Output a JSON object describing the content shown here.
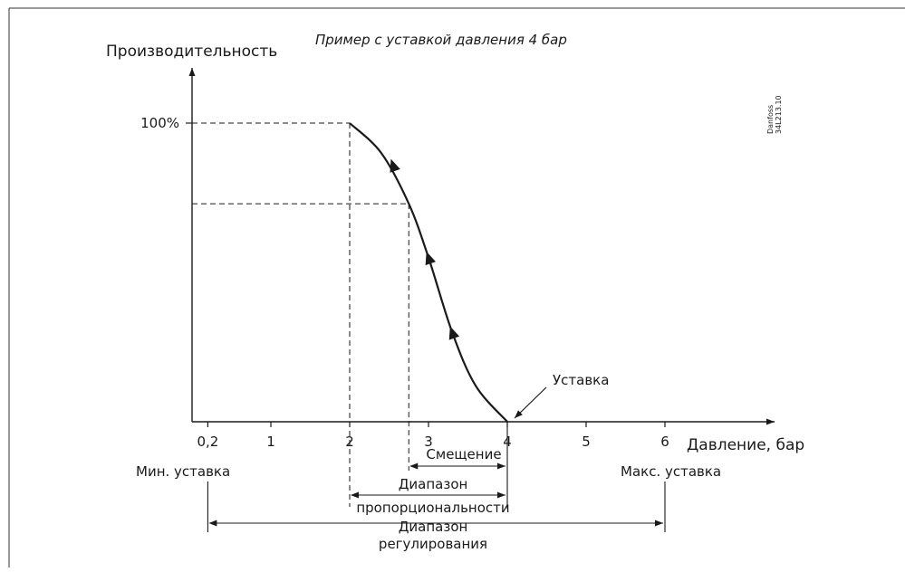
{
  "title": "Пример с уставкой давления 4 бар",
  "y_axis_label": "Производительность",
  "y_tick_100": "100%",
  "x_axis_label": "Давление, бар",
  "x_ticks": [
    "0,2",
    "1",
    "2",
    "3",
    "4",
    "5",
    "6"
  ],
  "setpoint_label": "Уставка",
  "offset_label": "Смещение",
  "proportional_range_label": [
    "Диапазон",
    "пропорциональности"
  ],
  "regulation_range_label": [
    "Диапазон",
    "регулирования"
  ],
  "min_setpoint_label": "Мин. уставка",
  "max_setpoint_label": "Макс. уставка",
  "drawing_code": [
    "Danfoss",
    "34L213.10"
  ],
  "chart_data": {
    "type": "line",
    "x_unit": "bar",
    "y_unit": "%",
    "xlim": [
      0,
      7.4
    ],
    "ylim": [
      0,
      100
    ],
    "curve": [
      {
        "x": 2.0,
        "y": 100
      },
      {
        "x": 2.4,
        "y": 90
      },
      {
        "x": 2.75,
        "y": 73
      },
      {
        "x": 3.0,
        "y": 55
      },
      {
        "x": 3.3,
        "y": 30
      },
      {
        "x": 3.6,
        "y": 12
      },
      {
        "x": 4.0,
        "y": 0
      }
    ],
    "setpoint": 4,
    "min_setpoint": 0.2,
    "max_setpoint": 6,
    "proportional_range": [
      2,
      4
    ],
    "offset": [
      2.75,
      4
    ],
    "reference_level_y": 73
  }
}
